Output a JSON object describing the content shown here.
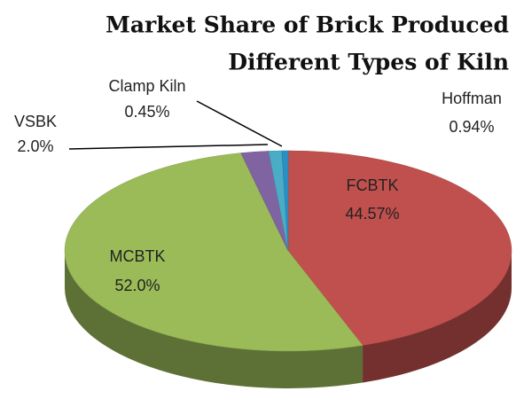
{
  "chart_data": {
    "type": "pie",
    "title": [
      "Market Share of Brick Produced",
      "Different Types of Kiln"
    ],
    "categories": [
      "FCBTK",
      "MCBTK",
      "VSBK",
      "Hoffman",
      "Clamp Kiln"
    ],
    "values": [
      44.57,
      52,
      2,
      0.94,
      0.45
    ],
    "value_labels": [
      "44.57%",
      "52.0%",
      "2.0%",
      "0.94%",
      "0.45%"
    ],
    "colors": [
      "#c0504d",
      "#9bbb59",
      "#8064a2",
      "#4bacc6",
      "#2c8fc4"
    ]
  }
}
